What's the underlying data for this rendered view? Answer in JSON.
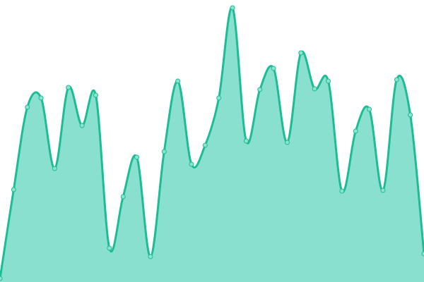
{
  "chart_data": {
    "type": "area",
    "title": "",
    "xlabel": "",
    "ylabel": "",
    "x": [
      0,
      1,
      2,
      3,
      4,
      5,
      6,
      7,
      8,
      9,
      10,
      11,
      12,
      13,
      14,
      15,
      16,
      17,
      18,
      19,
      20,
      21,
      22,
      23,
      24,
      25,
      26,
      27,
      28,
      29,
      30,
      31
    ],
    "values": [
      5,
      131,
      248,
      261,
      161,
      276,
      222,
      265,
      48,
      121,
      177,
      36,
      185,
      285,
      167,
      194,
      261,
      389,
      200,
      273,
      303,
      198,
      325,
      274,
      285,
      129,
      214,
      245,
      130,
      287,
      237,
      40
    ],
    "ylim": [
      0,
      400
    ],
    "grid": false,
    "axes_visible": false,
    "curve": "smooth",
    "colors": {
      "line": "#1dbd94",
      "fill": "#8ae0cf",
      "point": "#8ee3cf"
    }
  }
}
